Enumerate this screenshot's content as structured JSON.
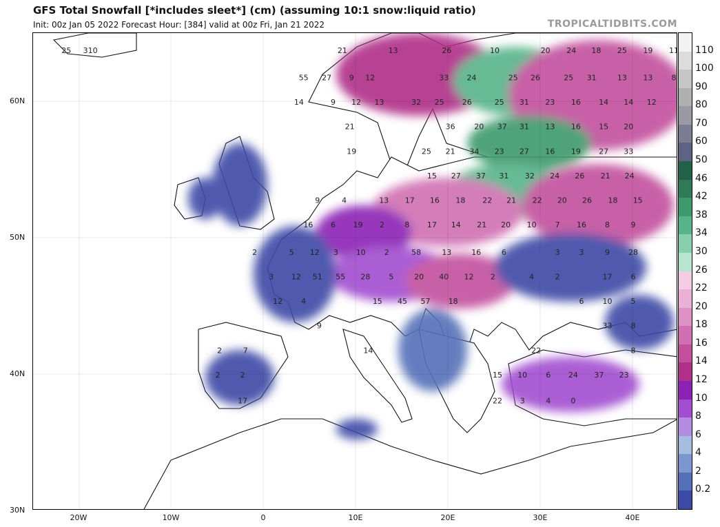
{
  "header": {
    "title": "GFS Total Snowfall [*includes sleet*] (cm) (assuming 10:1 snow:liquid ratio)",
    "subtitle": "Init: 00z Jan 05 2022   Forecast Hour: [384]   valid at 00z Fri, Jan 21 2022",
    "brand": "TROPICALTIDBITS.COM"
  },
  "axes": {
    "lat_labels": [
      "60N",
      "50N",
      "40N",
      "30N"
    ],
    "lon_labels": [
      "20W",
      "10W",
      "0",
      "10E",
      "20E",
      "30E",
      "40E"
    ]
  },
  "colorbar": {
    "labels": [
      "110",
      "100",
      "90",
      "80",
      "70",
      "60",
      "50",
      "46",
      "42",
      "38",
      "34",
      "30",
      "26",
      "22",
      "20",
      "18",
      "16",
      "14",
      "12",
      "10",
      "8",
      "6",
      "4",
      "2",
      "0.2"
    ],
    "colors": [
      "#f2f2f2",
      "#dcdcdc",
      "#c6c6c6",
      "#b0b0b0",
      "#9a9aa4",
      "#7c7c92",
      "#5e6384",
      "#23604a",
      "#2f7b58",
      "#3c9a6d",
      "#57b48a",
      "#88cfad",
      "#b8e5cf",
      "#f4cce6",
      "#eab0d6",
      "#de91c5",
      "#d070b2",
      "#c2509d",
      "#b02f88",
      "#8b22b5",
      "#a24ed0",
      "#b48de0",
      "#a6bde0",
      "#7c97cf",
      "#5470b8",
      "#3c4aa6"
    ]
  },
  "map": {
    "values": [
      {
        "t": "25",
        "lon": -21.4,
        "lat": 63.8
      },
      {
        "t": "310",
        "lon": -18.8,
        "lat": 63.8
      },
      {
        "t": "21",
        "lon": 8.5,
        "lat": 63.8
      },
      {
        "t": "13",
        "lon": 14.0,
        "lat": 63.8
      },
      {
        "t": "26",
        "lon": 19.8,
        "lat": 63.8
      },
      {
        "t": "10",
        "lon": 25.0,
        "lat": 63.8
      },
      {
        "t": "20",
        "lon": 30.5,
        "lat": 63.8
      },
      {
        "t": "24",
        "lon": 33.3,
        "lat": 63.8
      },
      {
        "t": "18",
        "lon": 36.0,
        "lat": 63.8
      },
      {
        "t": "25",
        "lon": 38.8,
        "lat": 63.8
      },
      {
        "t": "19",
        "lon": 41.6,
        "lat": 63.8
      },
      {
        "t": "11",
        "lon": 44.4,
        "lat": 63.8
      },
      {
        "t": "55",
        "lon": 4.3,
        "lat": 61.8
      },
      {
        "t": "27",
        "lon": 6.8,
        "lat": 61.8
      },
      {
        "t": "9",
        "lon": 9.5,
        "lat": 61.8
      },
      {
        "t": "12",
        "lon": 11.5,
        "lat": 61.8
      },
      {
        "t": "33",
        "lon": 19.5,
        "lat": 61.8
      },
      {
        "t": "24",
        "lon": 22.5,
        "lat": 61.8
      },
      {
        "t": "25",
        "lon": 27.0,
        "lat": 61.8
      },
      {
        "t": "26",
        "lon": 29.4,
        "lat": 61.8
      },
      {
        "t": "25",
        "lon": 33.0,
        "lat": 61.8
      },
      {
        "t": "31",
        "lon": 35.5,
        "lat": 61.8
      },
      {
        "t": "13",
        "lon": 38.8,
        "lat": 61.8
      },
      {
        "t": "13",
        "lon": 41.6,
        "lat": 61.8
      },
      {
        "t": "8",
        "lon": 44.4,
        "lat": 61.8
      },
      {
        "t": "14",
        "lon": 3.8,
        "lat": 60.0
      },
      {
        "t": "9",
        "lon": 7.5,
        "lat": 60.0
      },
      {
        "t": "12",
        "lon": 10.0,
        "lat": 60.0
      },
      {
        "t": "13",
        "lon": 12.5,
        "lat": 60.0
      },
      {
        "t": "32",
        "lon": 16.5,
        "lat": 60.0
      },
      {
        "t": "25",
        "lon": 19.0,
        "lat": 60.0
      },
      {
        "t": "26",
        "lon": 22.0,
        "lat": 60.0
      },
      {
        "t": "25",
        "lon": 25.5,
        "lat": 60.0
      },
      {
        "t": "31",
        "lon": 28.2,
        "lat": 60.0
      },
      {
        "t": "23",
        "lon": 31.0,
        "lat": 60.0
      },
      {
        "t": "16",
        "lon": 33.8,
        "lat": 60.0
      },
      {
        "t": "14",
        "lon": 36.8,
        "lat": 60.0
      },
      {
        "t": "14",
        "lon": 39.5,
        "lat": 60.0
      },
      {
        "t": "12",
        "lon": 42.0,
        "lat": 60.0
      },
      {
        "t": "21",
        "lon": 9.3,
        "lat": 58.2
      },
      {
        "t": "36",
        "lon": 20.2,
        "lat": 58.2
      },
      {
        "t": "20",
        "lon": 23.3,
        "lat": 58.2
      },
      {
        "t": "37",
        "lon": 25.8,
        "lat": 58.2
      },
      {
        "t": "31",
        "lon": 28.2,
        "lat": 58.2
      },
      {
        "t": "13",
        "lon": 31.0,
        "lat": 58.2
      },
      {
        "t": "16",
        "lon": 33.8,
        "lat": 58.2
      },
      {
        "t": "15",
        "lon": 36.8,
        "lat": 58.2
      },
      {
        "t": "20",
        "lon": 39.5,
        "lat": 58.2
      },
      {
        "t": "19",
        "lon": 9.5,
        "lat": 56.4
      },
      {
        "t": "25",
        "lon": 17.6,
        "lat": 56.4
      },
      {
        "t": "21",
        "lon": 20.2,
        "lat": 56.4
      },
      {
        "t": "34",
        "lon": 22.8,
        "lat": 56.4
      },
      {
        "t": "23",
        "lon": 25.5,
        "lat": 56.4
      },
      {
        "t": "27",
        "lon": 28.2,
        "lat": 56.4
      },
      {
        "t": "16",
        "lon": 31.0,
        "lat": 56.4
      },
      {
        "t": "19",
        "lon": 33.8,
        "lat": 56.4
      },
      {
        "t": "27",
        "lon": 36.8,
        "lat": 56.4
      },
      {
        "t": "33",
        "lon": 39.5,
        "lat": 56.4
      },
      {
        "t": "15",
        "lon": 18.2,
        "lat": 54.6
      },
      {
        "t": "27",
        "lon": 20.8,
        "lat": 54.6
      },
      {
        "t": "37",
        "lon": 23.5,
        "lat": 54.6
      },
      {
        "t": "31",
        "lon": 26.0,
        "lat": 54.6
      },
      {
        "t": "32",
        "lon": 28.8,
        "lat": 54.6
      },
      {
        "t": "24",
        "lon": 31.5,
        "lat": 54.6
      },
      {
        "t": "26",
        "lon": 34.2,
        "lat": 54.6
      },
      {
        "t": "21",
        "lon": 37.0,
        "lat": 54.6
      },
      {
        "t": "24",
        "lon": 39.6,
        "lat": 54.6
      },
      {
        "t": "9",
        "lon": 5.8,
        "lat": 52.8
      },
      {
        "t": "4",
        "lon": 8.7,
        "lat": 52.8
      },
      {
        "t": "13",
        "lon": 13.0,
        "lat": 52.8
      },
      {
        "t": "17",
        "lon": 15.8,
        "lat": 52.8
      },
      {
        "t": "16",
        "lon": 18.5,
        "lat": 52.8
      },
      {
        "t": "18",
        "lon": 21.3,
        "lat": 52.8
      },
      {
        "t": "22",
        "lon": 24.2,
        "lat": 52.8
      },
      {
        "t": "21",
        "lon": 26.8,
        "lat": 52.8
      },
      {
        "t": "22",
        "lon": 29.6,
        "lat": 52.8
      },
      {
        "t": "20",
        "lon": 32.3,
        "lat": 52.8
      },
      {
        "t": "26",
        "lon": 35.0,
        "lat": 52.8
      },
      {
        "t": "18",
        "lon": 37.8,
        "lat": 52.8
      },
      {
        "t": "15",
        "lon": 40.5,
        "lat": 52.8
      },
      {
        "t": "16",
        "lon": 4.8,
        "lat": 51.0
      },
      {
        "t": "6",
        "lon": 7.5,
        "lat": 51.0
      },
      {
        "t": "19",
        "lon": 10.2,
        "lat": 51.0
      },
      {
        "t": "2",
        "lon": 12.8,
        "lat": 51.0
      },
      {
        "t": "8",
        "lon": 15.5,
        "lat": 51.0
      },
      {
        "t": "17",
        "lon": 18.2,
        "lat": 51.0
      },
      {
        "t": "14",
        "lon": 20.8,
        "lat": 51.0
      },
      {
        "t": "21",
        "lon": 23.6,
        "lat": 51.0
      },
      {
        "t": "20",
        "lon": 26.2,
        "lat": 51.0
      },
      {
        "t": "10",
        "lon": 29.0,
        "lat": 51.0
      },
      {
        "t": "7",
        "lon": 31.8,
        "lat": 51.0
      },
      {
        "t": "16",
        "lon": 34.4,
        "lat": 51.0
      },
      {
        "t": "8",
        "lon": 37.2,
        "lat": 51.0
      },
      {
        "t": "9",
        "lon": 40.0,
        "lat": 51.0
      },
      {
        "t": "2",
        "lon": -1.0,
        "lat": 49.0
      },
      {
        "t": "5",
        "lon": 3.0,
        "lat": 49.0
      },
      {
        "t": "12",
        "lon": 5.5,
        "lat": 49.0
      },
      {
        "t": "3",
        "lon": 7.8,
        "lat": 49.0
      },
      {
        "t": "10",
        "lon": 10.5,
        "lat": 49.0
      },
      {
        "t": "2",
        "lon": 13.3,
        "lat": 49.0
      },
      {
        "t": "58",
        "lon": 16.5,
        "lat": 49.0
      },
      {
        "t": "13",
        "lon": 19.8,
        "lat": 49.0
      },
      {
        "t": "16",
        "lon": 23.0,
        "lat": 49.0
      },
      {
        "t": "6",
        "lon": 26.0,
        "lat": 49.0
      },
      {
        "t": "3",
        "lon": 31.8,
        "lat": 49.0
      },
      {
        "t": "3",
        "lon": 34.4,
        "lat": 49.0
      },
      {
        "t": "9",
        "lon": 37.2,
        "lat": 49.0
      },
      {
        "t": "28",
        "lon": 40.0,
        "lat": 49.0
      },
      {
        "t": "3",
        "lon": 0.8,
        "lat": 47.2
      },
      {
        "t": "12",
        "lon": 3.5,
        "lat": 47.2
      },
      {
        "t": "51",
        "lon": 5.8,
        "lat": 47.2
      },
      {
        "t": "55",
        "lon": 8.3,
        "lat": 47.2
      },
      {
        "t": "28",
        "lon": 11.0,
        "lat": 47.2
      },
      {
        "t": "5",
        "lon": 13.8,
        "lat": 47.2
      },
      {
        "t": "20",
        "lon": 16.8,
        "lat": 47.2
      },
      {
        "t": "40",
        "lon": 19.5,
        "lat": 47.2
      },
      {
        "t": "12",
        "lon": 22.2,
        "lat": 47.2
      },
      {
        "t": "2",
        "lon": 24.8,
        "lat": 47.2
      },
      {
        "t": "4",
        "lon": 29.0,
        "lat": 47.2
      },
      {
        "t": "2",
        "lon": 31.8,
        "lat": 47.2
      },
      {
        "t": "17",
        "lon": 37.2,
        "lat": 47.2
      },
      {
        "t": "6",
        "lon": 40.0,
        "lat": 47.2
      },
      {
        "t": "12",
        "lon": 1.5,
        "lat": 45.4
      },
      {
        "t": "4",
        "lon": 4.3,
        "lat": 45.4
      },
      {
        "t": "15",
        "lon": 12.3,
        "lat": 45.4
      },
      {
        "t": "45",
        "lon": 15.0,
        "lat": 45.4
      },
      {
        "t": "57",
        "lon": 17.5,
        "lat": 45.4
      },
      {
        "t": "18",
        "lon": 20.5,
        "lat": 45.4
      },
      {
        "t": "6",
        "lon": 34.4,
        "lat": 45.4
      },
      {
        "t": "10",
        "lon": 37.2,
        "lat": 45.4
      },
      {
        "t": "5",
        "lon": 40.0,
        "lat": 45.4
      },
      {
        "t": "9",
        "lon": 6.0,
        "lat": 43.6
      },
      {
        "t": "33",
        "lon": 37.2,
        "lat": 43.6
      },
      {
        "t": "8",
        "lon": 40.0,
        "lat": 43.6
      },
      {
        "t": "2",
        "lon": -4.8,
        "lat": 41.8
      },
      {
        "t": "7",
        "lon": -2.0,
        "lat": 41.8
      },
      {
        "t": "14",
        "lon": 11.3,
        "lat": 41.8
      },
      {
        "t": "22",
        "lon": 29.5,
        "lat": 41.8
      },
      {
        "t": "8",
        "lon": 40.0,
        "lat": 41.8
      },
      {
        "t": "2",
        "lon": -5.0,
        "lat": 40.0
      },
      {
        "t": "2",
        "lon": -2.3,
        "lat": 40.0
      },
      {
        "t": "15",
        "lon": 25.3,
        "lat": 40.0
      },
      {
        "t": "10",
        "lon": 28.0,
        "lat": 40.0
      },
      {
        "t": "6",
        "lon": 30.8,
        "lat": 40.0
      },
      {
        "t": "24",
        "lon": 33.5,
        "lat": 40.0
      },
      {
        "t": "37",
        "lon": 36.3,
        "lat": 40.0
      },
      {
        "t": "23",
        "lon": 39.0,
        "lat": 40.0
      },
      {
        "t": "17",
        "lon": -2.3,
        "lat": 38.1
      },
      {
        "t": "22",
        "lon": 25.3,
        "lat": 38.1
      },
      {
        "t": "3",
        "lon": 28.0,
        "lat": 38.1
      },
      {
        "t": "4",
        "lon": 30.8,
        "lat": 38.1
      },
      {
        "t": "0",
        "lon": 33.5,
        "lat": 38.1
      }
    ]
  }
}
